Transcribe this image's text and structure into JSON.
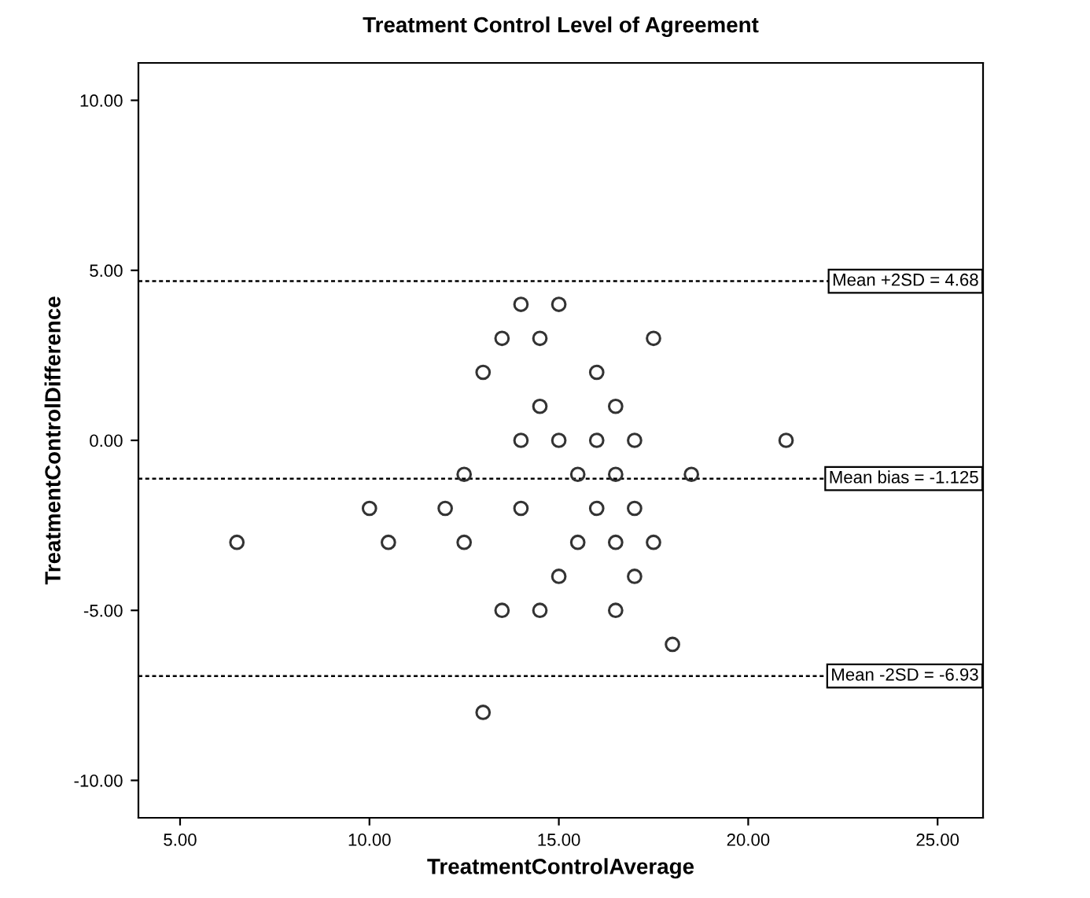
{
  "chart_data": {
    "type": "scatter",
    "title": "Treatment Control Level of Agreement",
    "xlabel": "TreatmentControlAverage",
    "ylabel": "TreatmentControlDifference",
    "x": [
      14.0,
      15.0,
      13.5,
      14.5,
      17.5,
      13.0,
      16.0,
      14.5,
      16.5,
      14.0,
      15.0,
      16.0,
      17.0,
      21.0,
      12.5,
      15.5,
      16.5,
      18.5,
      10.0,
      12.0,
      14.0,
      16.0,
      17.0,
      6.5,
      10.5,
      12.5,
      15.5,
      16.5,
      17.5,
      15.0,
      17.0,
      13.5,
      14.5,
      16.5,
      18.0,
      13.0
    ],
    "values": [
      4,
      4,
      3,
      3,
      3,
      2,
      2,
      1,
      1,
      0,
      0,
      0,
      0,
      0,
      -1,
      -1,
      -1,
      -1,
      -2,
      -2,
      -2,
      -2,
      -2,
      -3,
      -3,
      -3,
      -3,
      -3,
      -3,
      -4,
      -4,
      -5,
      -5,
      -5,
      -6,
      -8
    ],
    "color": "#333333",
    "marker": "circle",
    "xlim": [
      3.9,
      26.2
    ],
    "xticks": [
      {
        "value": 5,
        "label": "5.00"
      },
      {
        "value": 10,
        "label": "10.00"
      },
      {
        "value": 15,
        "label": "15.00"
      },
      {
        "value": 20,
        "label": "20.00"
      },
      {
        "value": 25,
        "label": "25.00"
      }
    ],
    "ylim": [
      -11.1,
      11.1
    ],
    "yticks": [
      {
        "value": -10,
        "label": "-10.00"
      },
      {
        "value": -5,
        "label": "-5.00"
      },
      {
        "value": 0,
        "label": "0.00"
      },
      {
        "value": 5,
        "label": "5.00"
      },
      {
        "value": 10,
        "label": "10.00"
      }
    ],
    "ref_lines": [
      {
        "axis": "y",
        "value": 4.68,
        "label": "Mean +2SD = 4.68",
        "color": "#000000",
        "line_style": "dotted"
      },
      {
        "axis": "y",
        "value": -1.125,
        "label": "Mean bias = -1.125",
        "color": "#000000",
        "line_style": "dotted"
      },
      {
        "axis": "y",
        "value": -6.93,
        "label": "Mean -2SD = -6.93",
        "color": "#000000",
        "line_style": "dotted"
      }
    ],
    "grid": false
  }
}
